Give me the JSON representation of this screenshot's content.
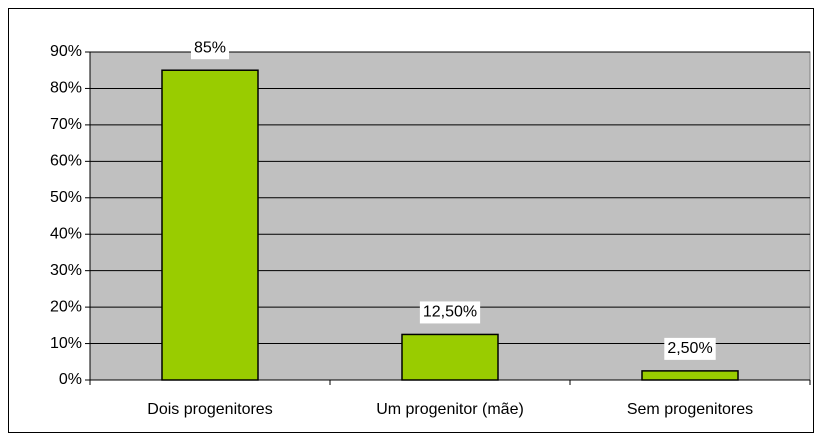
{
  "chart_data": {
    "type": "bar",
    "categories": [
      "Dois progenitores",
      "Um progenitor (mãe)",
      "Sem progenitores"
    ],
    "values": [
      85,
      12.5,
      2.5
    ],
    "value_labels": [
      "85%",
      "12,50%",
      "2,50%"
    ],
    "color": "#99cc00",
    "ylim": [
      0,
      90
    ],
    "yticks": [
      {
        "value": 0,
        "label": "0%"
      },
      {
        "value": 10,
        "label": "10%"
      },
      {
        "value": 20,
        "label": "20%"
      },
      {
        "value": 30,
        "label": "30%"
      },
      {
        "value": 40,
        "label": "40%"
      },
      {
        "value": 50,
        "label": "50%"
      },
      {
        "value": 60,
        "label": "60%"
      },
      {
        "value": 70,
        "label": "70%"
      },
      {
        "value": 80,
        "label": "80%"
      },
      {
        "value": 90,
        "label": "90%"
      }
    ],
    "grid": true
  }
}
